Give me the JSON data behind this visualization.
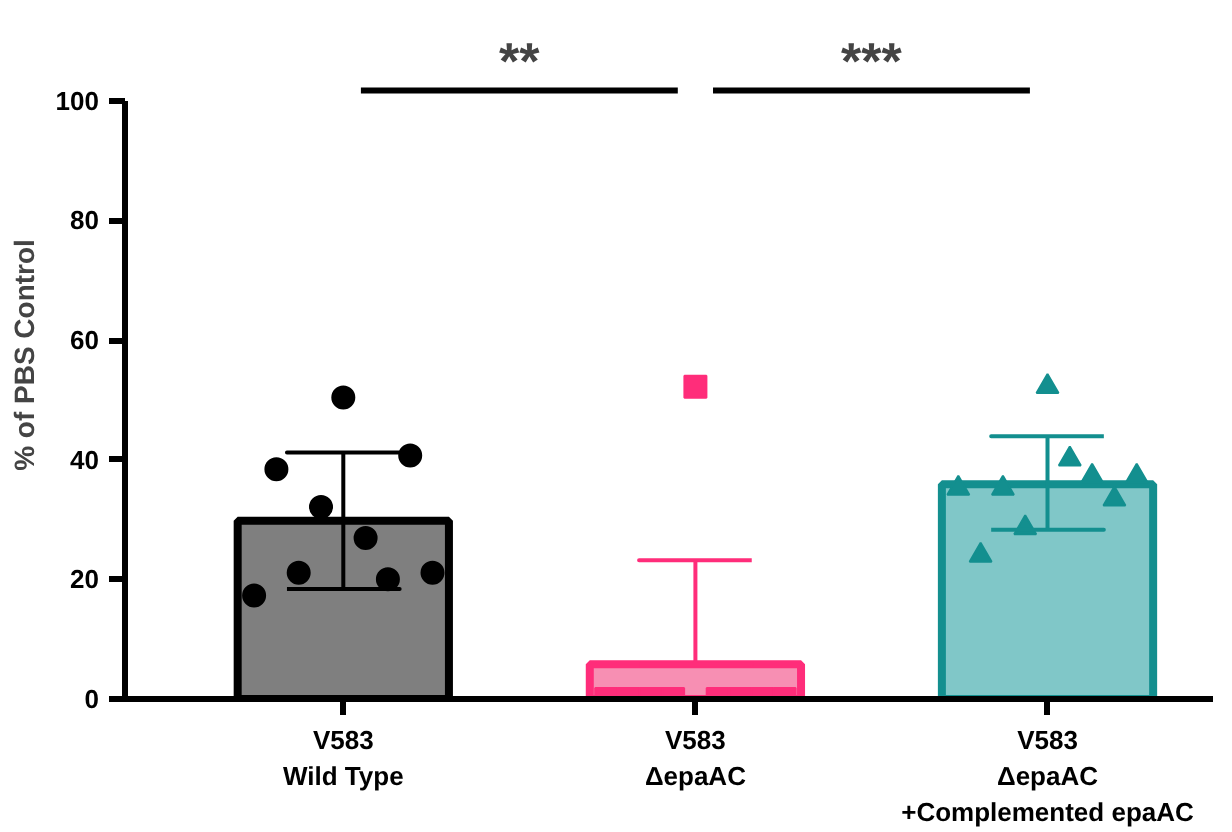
{
  "chart_data": {
    "type": "bar",
    "ylabel": "% of PBS Control",
    "categories": [
      "V583\nWild Type",
      "V583\nΔepaAC",
      "V583\nΔepaAC\n+Complemented epaAC"
    ],
    "ylim": [
      0,
      100
    ],
    "yticks": [
      0,
      20,
      40,
      60,
      80,
      100
    ],
    "grid": false,
    "values": [
      29.8,
      5.8,
      35.9
    ],
    "colors": [
      "#7f7f7f",
      "#f78fb3",
      "#80c7c8"
    ],
    "errors": [
      [
        18.4,
        41.2
      ],
      [
        5.8,
        23.2
      ],
      [
        28.3,
        43.9
      ]
    ],
    "annotations": [
      "**",
      "***"
    ],
    "series": [
      {
        "type": "scatter",
        "marker": "circle",
        "color": "#000000",
        "x": [
          "V583\nWild Type",
          "V583\nWild Type",
          "V583\nWild Type",
          "V583\nWild Type",
          "V583\nWild Type",
          "V583\nWild Type",
          "V583\nWild Type",
          "V583\nWild Type",
          "V583\nWild Type"
        ],
        "values": [
          17.3,
          38.4,
          21.1,
          32.1,
          50.4,
          26.9,
          20.0,
          40.7,
          21.1
        ]
      },
      {
        "type": "scatter",
        "marker": "square",
        "color": "#ff2d7a",
        "x": [
          "V583\nΔepaAC",
          "V583\nΔepaAC",
          "V583\nΔepaAC",
          "V583\nΔepaAC",
          "V583\nΔepaAC",
          "V583\nΔepaAC",
          "V583\nΔepaAC",
          "V583\nΔepaAC",
          "V583\nΔepaAC"
        ],
        "values": [
          0,
          0,
          0,
          0,
          52.2,
          0,
          0,
          0,
          0
        ]
      },
      {
        "type": "scatter",
        "marker": "triangle",
        "color": "#138f8f",
        "x": [
          "V583\nΔepaAC\n+Complemented epaAC",
          "V583\nΔepaAC\n+Complemented epaAC",
          "V583\nΔepaAC\n+Complemented epaAC",
          "V583\nΔepaAC\n+Complemented epaAC",
          "V583\nΔepaAC\n+Complemented epaAC",
          "V583\nΔepaAC\n+Complemented epaAC",
          "V583\nΔepaAC\n+Complemented epaAC",
          "V583\nΔepaAC\n+Complemented epaAC",
          "V583\nΔepaAC\n+Complemented epaAC"
        ],
        "values": [
          35.2,
          24.0,
          35.2,
          28.6,
          52.2,
          40.1,
          37.2,
          33.4,
          37.2
        ]
      }
    ]
  }
}
